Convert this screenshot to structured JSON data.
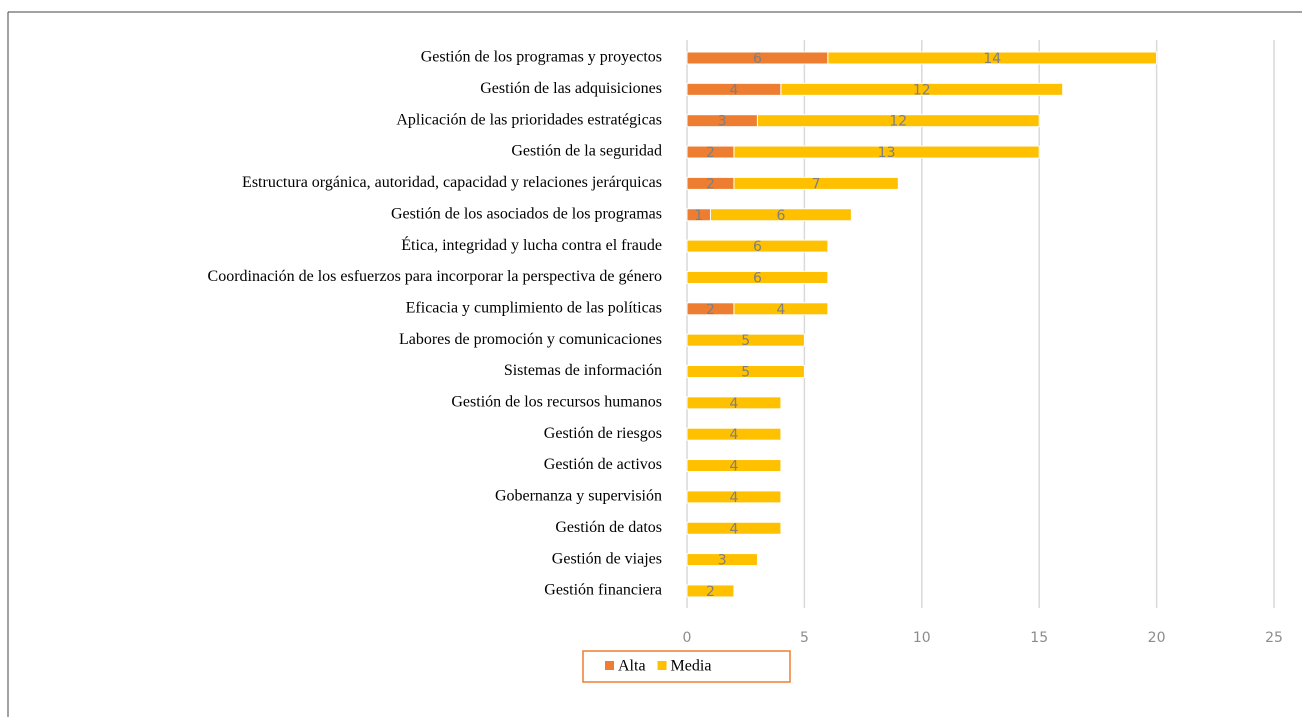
{
  "chart_data": {
    "type": "stacked-barh",
    "categories": [
      "Gestión de los programas y proyectos",
      "Gestión de las adquisiciones",
      "Aplicación de las prioridades estratégicas",
      "Gestión de la seguridad",
      "Estructura orgánica, autoridad, capacidad y relaciones jerárquicas",
      "Gestión de los asociados de los programas",
      "Ética, integridad y lucha contra el fraude",
      "Coordinación de los esfuerzos para incorporar la perspectiva de género",
      "Eficacia y cumplimiento de las políticas",
      "Labores de promoción y comunicaciones",
      "Sistemas de información",
      "Gestión de los recursos humanos",
      "Gestión de riesgos",
      "Gestión de activos",
      "Gobernanza y supervisión",
      "Gestión de datos",
      "Gestión de viajes",
      "Gestión financiera"
    ],
    "series": [
      {
        "name": "Alta",
        "color": "#ed7d31",
        "values": [
          6,
          4,
          3,
          2,
          2,
          1,
          null,
          null,
          2,
          null,
          null,
          null,
          null,
          null,
          null,
          null,
          null,
          null
        ]
      },
      {
        "name": "Media",
        "color": "#ffc000",
        "values": [
          14,
          12,
          12,
          13,
          7,
          6,
          6,
          6,
          4,
          5,
          5,
          4,
          4,
          4,
          4,
          4,
          3,
          2
        ]
      }
    ],
    "xlim": [
      0,
      25
    ],
    "xticks": [
      0,
      5,
      10,
      15,
      20,
      25
    ],
    "grid": true,
    "legend": "bottom"
  }
}
